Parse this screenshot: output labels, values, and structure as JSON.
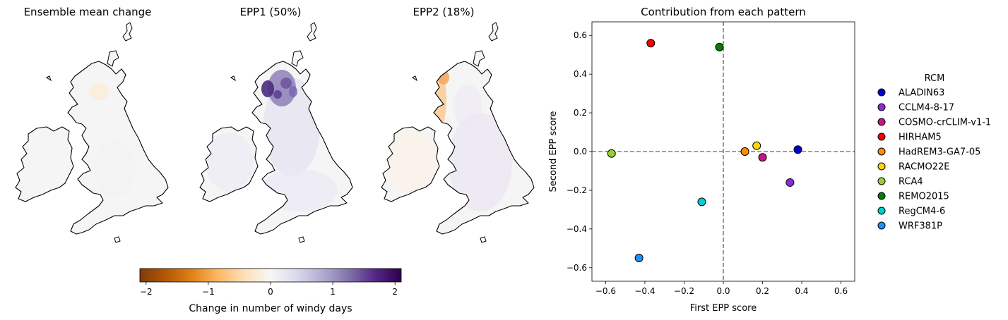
{
  "maps": [
    {
      "title": "Ensemble mean change",
      "pattern": "mean"
    },
    {
      "title": "EPP1 (50%)",
      "pattern": "epp1"
    },
    {
      "title": "EPP2 (18%)",
      "pattern": "epp2"
    }
  ],
  "colorbar": {
    "label": "Change in number of windy days",
    "ticks": [
      "−2",
      "−1",
      "0",
      "1",
      "2"
    ],
    "tick_values": [
      -2,
      -1,
      0,
      1,
      2
    ],
    "range": [
      -2.1,
      2.1
    ],
    "colormap": "PuOr",
    "colors": [
      "#7f3b08",
      "#b35806",
      "#e08214",
      "#fdb863",
      "#fee0b6",
      "#f7f7f7",
      "#d8daeb",
      "#b2abd2",
      "#8073ac",
      "#542788",
      "#2d004b"
    ]
  },
  "chart_data": {
    "type": "scatter",
    "title": "Contribution from each pattern",
    "xlabel": "First EPP score",
    "ylabel": "Second EPP score",
    "xlim": [
      -0.67,
      0.67
    ],
    "ylim": [
      -0.67,
      0.67
    ],
    "xticks": [
      -0.6,
      -0.4,
      -0.2,
      0.0,
      0.2,
      0.4,
      0.6
    ],
    "yticks": [
      -0.6,
      -0.4,
      -0.2,
      0.0,
      0.2,
      0.4,
      0.6
    ],
    "xtick_labels": [
      "−0.6",
      "−0.4",
      "−0.2",
      "0.0",
      "0.2",
      "0.4",
      "0.6"
    ],
    "ytick_labels": [
      "−0.6",
      "−0.4",
      "−0.2",
      "0.0",
      "0.2",
      "0.4",
      "0.6"
    ],
    "reference_lines": {
      "x": 0,
      "y": 0,
      "style": "dashed",
      "color": "#808080"
    },
    "legend": {
      "title": "RCM",
      "placement": "right"
    },
    "grid": false,
    "series": [
      {
        "name": "ALADIN63",
        "color": "#0000cd",
        "x": 0.38,
        "y": 0.01
      },
      {
        "name": "CCLM4-8-17",
        "color": "#8a2be2",
        "x": 0.34,
        "y": -0.16
      },
      {
        "name": "COSMO-crCLIM-v1-1",
        "color": "#c71585",
        "x": 0.2,
        "y": -0.03
      },
      {
        "name": "HIRHAM5",
        "color": "#ff0000",
        "x": -0.37,
        "y": 0.56
      },
      {
        "name": "HadREM3-GA7-05",
        "color": "#ff8c00",
        "x": 0.11,
        "y": 0.0
      },
      {
        "name": "RACMO22E",
        "color": "#ffd700",
        "x": 0.17,
        "y": 0.03
      },
      {
        "name": "RCA4",
        "color": "#9acd32",
        "x": -0.57,
        "y": -0.01
      },
      {
        "name": "REMO2015",
        "color": "#008000",
        "x": -0.02,
        "y": 0.54
      },
      {
        "name": "RegCM4-6",
        "color": "#00ced1",
        "x": -0.11,
        "y": -0.26
      },
      {
        "name": "WRF381P",
        "color": "#1e90ff",
        "x": -0.43,
        "y": -0.55
      }
    ]
  }
}
